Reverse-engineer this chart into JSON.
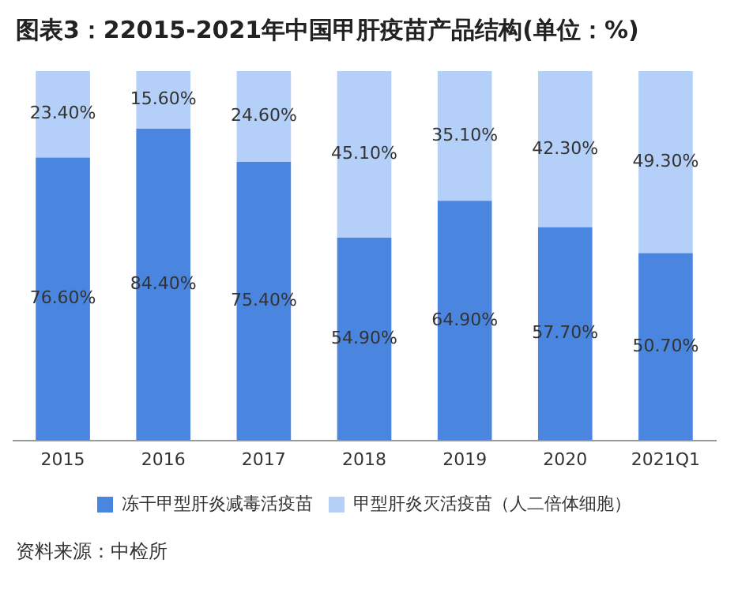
{
  "chart_data": {
    "type": "bar",
    "title": "图表3：22015-2021年中国甲肝疫苗产品结构(单位：%)",
    "categories": [
      "2015",
      "2016",
      "2017",
      "2018",
      "2019",
      "2020",
      "2021Q1"
    ],
    "stacked": true,
    "series": [
      {
        "name": "冻干甲型肝炎减毒活疫苗",
        "color": "#4a86e0",
        "values": [
          76.6,
          84.4,
          75.4,
          54.9,
          64.9,
          57.7,
          50.7
        ],
        "value_labels": [
          "76.60%",
          "84.40%",
          "75.40%",
          "54.90%",
          "64.90%",
          "57.70%",
          "50.70%"
        ]
      },
      {
        "name": "甲型肝炎灭活疫苗（人二倍体细胞）",
        "color": "#b4d0f8",
        "values": [
          23.4,
          15.6,
          24.6,
          45.1,
          35.1,
          42.3,
          49.3
        ],
        "value_labels": [
          "23.40%",
          "15.60%",
          "24.60%",
          "45.10%",
          "35.10%",
          "42.30%",
          "49.30%"
        ]
      }
    ],
    "legend": "bottom",
    "grid": false,
    "annotations": [
      "资料来源：中检所"
    ]
  }
}
